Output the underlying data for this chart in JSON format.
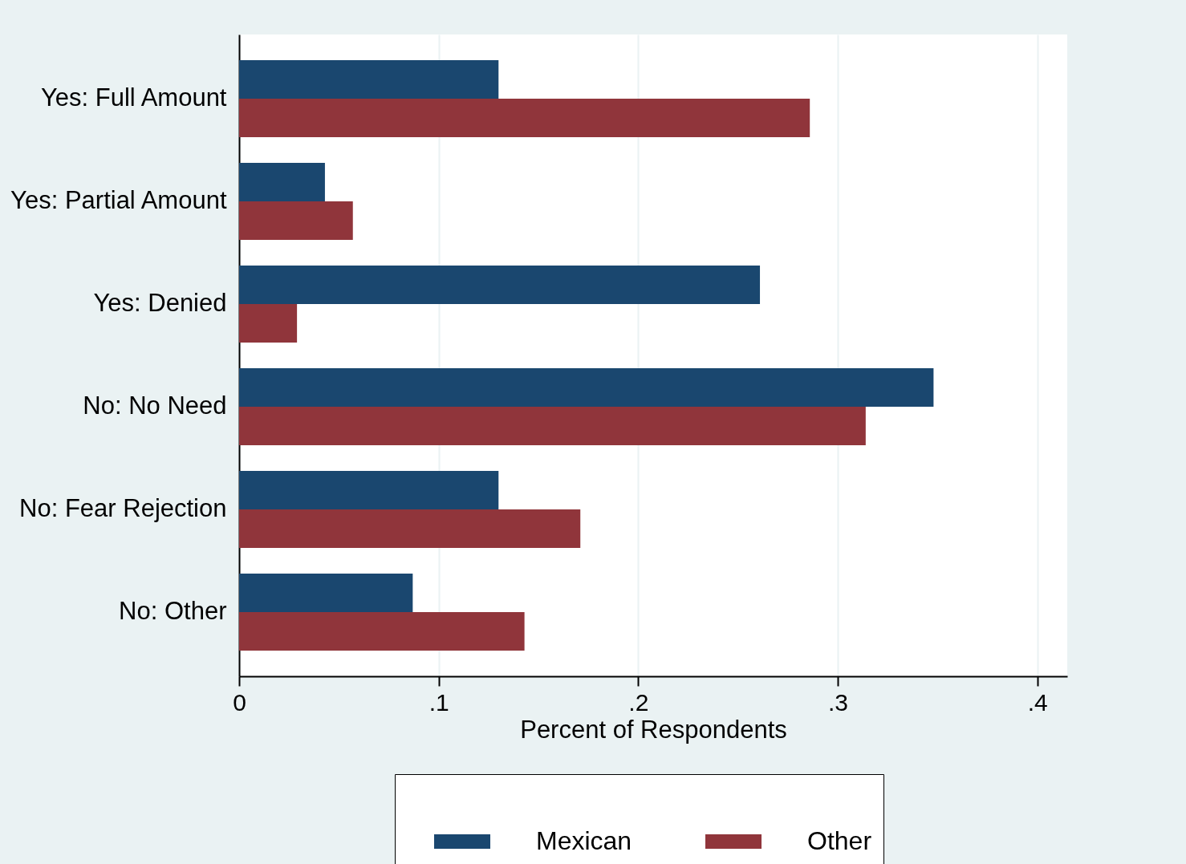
{
  "chart_data": {
    "type": "bar",
    "orientation": "horizontal",
    "xlabel": "Percent of Respondents",
    "categories": [
      "Yes: Full Amount",
      "Yes: Partial Amount",
      "Yes: Denied",
      "No: No Need",
      "No: Fear Rejection",
      "No: Other"
    ],
    "series": [
      {
        "name": "Mexican",
        "color": "#1a476f",
        "values": [
          0.13,
          0.043,
          0.261,
          0.348,
          0.13,
          0.087
        ]
      },
      {
        "name": "Other",
        "color": "#90353b",
        "values": [
          0.286,
          0.057,
          0.029,
          0.314,
          0.171,
          0.143
        ]
      }
    ],
    "xlim": [
      0,
      0.415
    ],
    "xticks": [
      0,
      {
        "value": 0.1,
        "label": ".1"
      },
      {
        "value": 0.2,
        "label": ".2"
      },
      {
        "value": 0.3,
        "label": ".3"
      },
      {
        "value": 0.4,
        "label": ".4"
      }
    ],
    "grid": "x",
    "legend": "bottom"
  }
}
